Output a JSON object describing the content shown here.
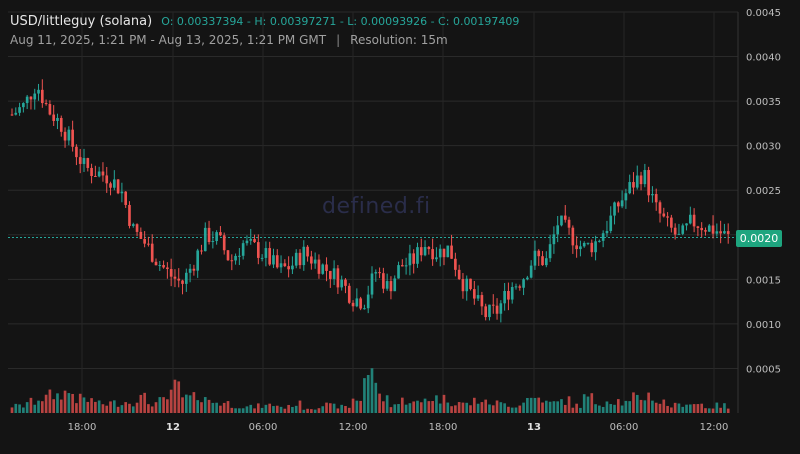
{
  "header": {
    "symbol": "USD/littleguy (solana)",
    "ohlc": "O: 0.00337394 - H: 0.00397271 - L: 0.00093926 - C: 0.00197409",
    "range": "Aug 11, 2025, 1:21 PM - Aug 13, 2025, 1:21 PM GMT",
    "separator": "|",
    "resolution": "Resolution: 15m"
  },
  "watermark": "defined.fi",
  "current_price": "0.0020",
  "colors": {
    "up": "#26a69a",
    "down": "#ef5350",
    "background": "#141414",
    "tag": "#1ea57f"
  },
  "chart_data": {
    "type": "candlestick",
    "y_ticks": [
      "0.0045",
      "0.0040",
      "0.0035",
      "0.0030",
      "0.0025",
      "0.0020",
      "0.0015",
      "0.0010",
      "0.0005"
    ],
    "x_ticks": [
      "18:00",
      "12",
      "06:00",
      "12:00",
      "18:00",
      "13",
      "06:00",
      "12:00"
    ],
    "ylim": [
      0.0,
      0.0045
    ],
    "last_price": 0.00197,
    "ohlc_summary": {
      "open": 0.00337394,
      "high": 0.00397271,
      "low": 0.00093926,
      "close": 0.00197409
    },
    "close_trend": [
      0.00335,
      0.00345,
      0.0037,
      0.0034,
      0.00325,
      0.003,
      0.00275,
      0.0027,
      0.00265,
      0.0025,
      0.00205,
      0.0019,
      0.0017,
      0.00155,
      0.00145,
      0.0017,
      0.002,
      0.00195,
      0.0017,
      0.0019,
      0.00185,
      0.00175,
      0.0016,
      0.00165,
      0.0018,
      0.0017,
      0.0016,
      0.0015,
      0.0013,
      0.00125,
      0.0016,
      0.0014,
      0.00165,
      0.0017,
      0.0019,
      0.0018,
      0.00185,
      0.0015,
      0.0013,
      0.0011,
      0.00115,
      0.0014,
      0.0015,
      0.00175,
      0.0017,
      0.00215,
      0.002,
      0.00185,
      0.0019,
      0.0021,
      0.00235,
      0.00255,
      0.0027,
      0.0023,
      0.0021,
      0.00195,
      0.00215,
      0.0021,
      0.00205,
      0.00197
    ],
    "volume_trend": [
      0.14,
      0.22,
      0.3,
      0.35,
      0.4,
      0.28,
      0.25,
      0.18,
      0.2,
      0.22,
      0.3,
      0.2,
      0.24,
      0.5,
      0.3,
      0.35,
      0.22,
      0.2,
      0.15,
      0.12,
      0.14,
      0.16,
      0.12,
      0.18,
      0.1,
      0.16,
      0.14,
      0.12,
      0.28,
      0.75,
      0.3,
      0.18,
      0.25,
      0.2,
      0.3,
      0.28,
      0.22,
      0.18,
      0.25,
      0.2,
      0.18,
      0.15,
      0.28,
      0.3,
      0.2,
      0.25,
      0.15,
      0.3,
      0.2,
      0.25,
      0.2,
      0.3,
      0.35,
      0.22,
      0.15,
      0.2,
      0.18,
      0.12,
      0.15,
      0.1
    ]
  }
}
